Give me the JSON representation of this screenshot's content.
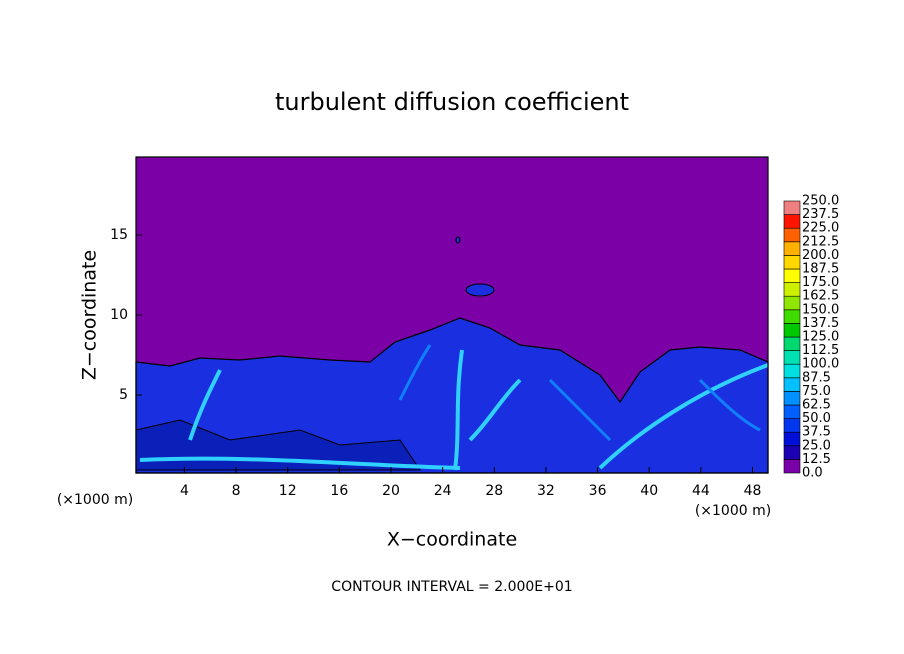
{
  "chart_data": {
    "type": "contour",
    "title": "turbulent diffusion coefficient",
    "xlabel": "X−coordinate",
    "ylabel": "Z−coordinate",
    "x_unit_left": "(×1000 m)",
    "x_unit_right": "(×1000 m)",
    "note": "CONTOUR INTERVAL = 2.000E+01",
    "xlim": [
      0.25,
      49.2
    ],
    "xticks": [
      4,
      8,
      12,
      16,
      20,
      24,
      28,
      32,
      36,
      40,
      44,
      48
    ],
    "ylim": [
      0.125,
      19.875
    ],
    "yticks": [
      5,
      10,
      15
    ],
    "colorbar": {
      "ticks": [
        {
          "value": 0,
          "label": "0.0"
        },
        {
          "value": 12.5,
          "label": "12.5"
        },
        {
          "value": 25,
          "label": "25.0"
        },
        {
          "value": 37.5,
          "label": "37.5"
        },
        {
          "value": 50,
          "label": "50.0"
        },
        {
          "value": 62.5,
          "label": "62.5"
        },
        {
          "value": 75,
          "label": "75.0"
        },
        {
          "value": 87.5,
          "label": "87.5"
        },
        {
          "value": 100,
          "label": "100.0"
        },
        {
          "value": 112.5,
          "label": "112.5"
        },
        {
          "value": 125,
          "label": "125.0"
        },
        {
          "value": 137.5,
          "label": "137.5"
        },
        {
          "value": 150,
          "label": "150.0"
        },
        {
          "value": 162.5,
          "label": "162.5"
        },
        {
          "value": 175,
          "label": "175.0"
        },
        {
          "value": 187.5,
          "label": "187.5"
        },
        {
          "value": 200,
          "label": "200.0"
        },
        {
          "value": 212.5,
          "label": "212.5"
        },
        {
          "value": 225,
          "label": "225.0"
        },
        {
          "value": 237.5,
          "label": "237.5"
        },
        {
          "value": 250,
          "label": "250.0"
        }
      ],
      "colors": [
        "#7a00a8",
        "#1c00b4",
        "#0010d8",
        "#0038f0",
        "#0060ff",
        "#0090ff",
        "#00c0ff",
        "#00e0e0",
        "#00e0b0",
        "#00d870",
        "#00c800",
        "#40dc00",
        "#90e600",
        "#ccf000",
        "#ffff00",
        "#ffd800",
        "#ffb000",
        "#ff6000",
        "#ff1400",
        "#f08080"
      ]
    }
  }
}
